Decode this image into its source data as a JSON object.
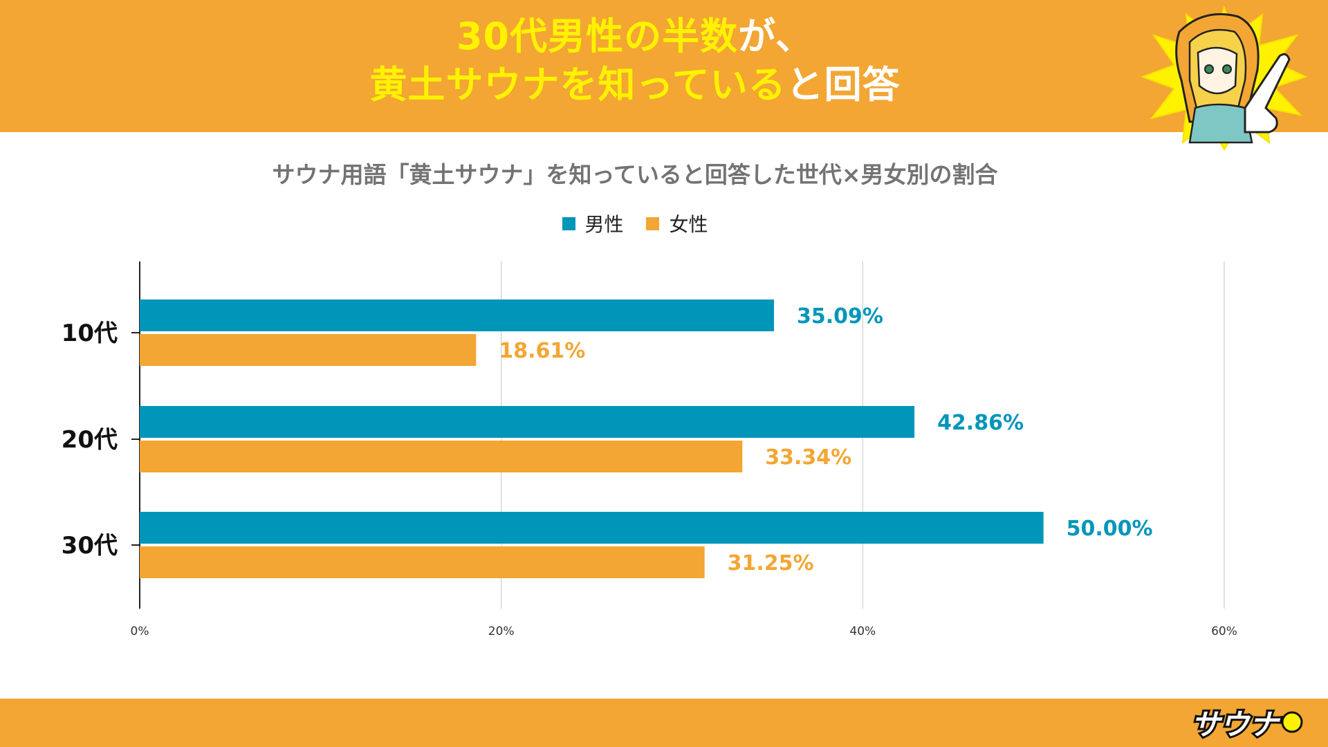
{
  "headline": {
    "line1_yellow": "30代男性の半数",
    "line1_white": "が、",
    "line2_yellow": "黄土サウナを知っている",
    "line2_white": "と回答"
  },
  "brand": {
    "logo_text": "サウナ"
  },
  "colors": {
    "band": "#f3a633",
    "male": "#0096b9",
    "female": "#f3a633",
    "highlight": "#fff200"
  },
  "chart_data": {
    "type": "bar",
    "orientation": "horizontal",
    "title": "サウナ用語「黄土サウナ」を知っていると回答した世代×男女別の割合",
    "categories": [
      "10代",
      "20代",
      "30代"
    ],
    "series": [
      {
        "name": "男性",
        "values": [
          35.09,
          42.86,
          50.0
        ],
        "labels": [
          "35.09%",
          "42.86%",
          "50.00%"
        ]
      },
      {
        "name": "女性",
        "values": [
          18.61,
          33.34,
          31.25
        ],
        "labels": [
          "18.61%",
          "33.34%",
          "31.25%"
        ]
      }
    ],
    "xlim": [
      0,
      60
    ],
    "xticks": [
      0,
      20,
      40,
      60
    ],
    "xtick_labels": [
      "0%",
      "20%",
      "40%",
      "60%"
    ],
    "grid": true,
    "legend": "top-center"
  }
}
